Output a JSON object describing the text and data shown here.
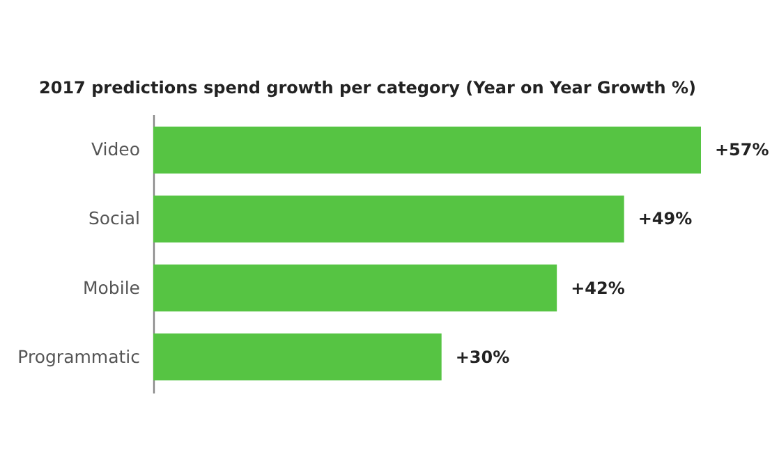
{
  "chart_data": {
    "type": "bar",
    "orientation": "horizontal",
    "title": "2017 predictions spend growth per category (Year on Year Growth %)",
    "categories": [
      "Video",
      "Social",
      "Mobile",
      "Programmatic"
    ],
    "values": [
      57,
      49,
      42,
      30
    ],
    "value_labels": [
      "+57%",
      "+49%",
      "+42%",
      "+30%"
    ],
    "color": "#56c443"
  }
}
